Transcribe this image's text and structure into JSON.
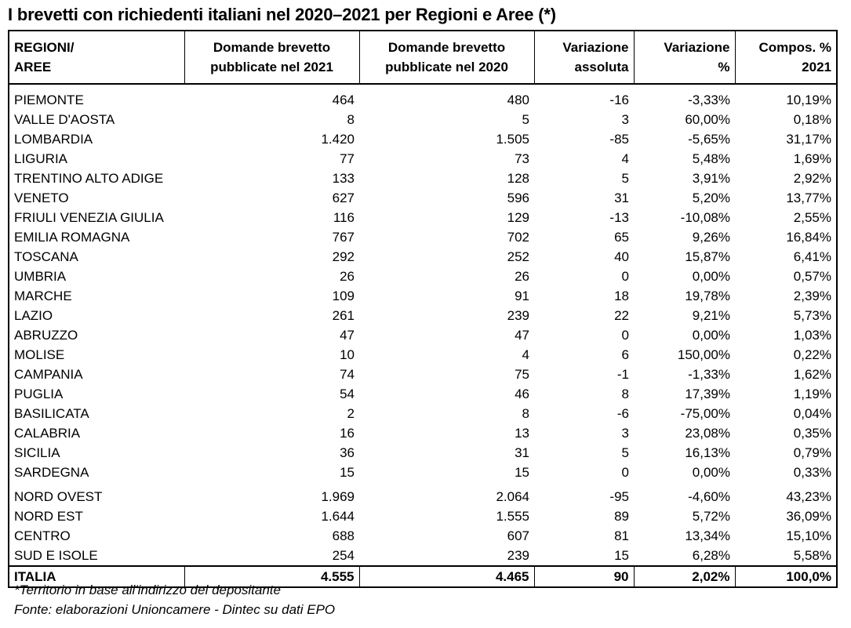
{
  "title": "I brevetti con richiedenti italiani nel 2020–2021 per Regioni e Aree (*)",
  "headers": {
    "col0": [
      "REGIONI/",
      "AREE"
    ],
    "col1": [
      "Domande brevetto",
      "pubblicate nel 2021"
    ],
    "col2": [
      "Domande brevetto",
      "pubblicate nel 2020"
    ],
    "col3": [
      "Variazione",
      "assoluta"
    ],
    "col4": [
      "Variazione",
      "%"
    ],
    "col5": [
      "Compos. %",
      "2021"
    ]
  },
  "regions": [
    [
      "PIEMONTE",
      "464",
      "480",
      "-16",
      "-3,33%",
      "10,19%"
    ],
    [
      "VALLE D'AOSTA",
      "8",
      "5",
      "3",
      "60,00%",
      "0,18%"
    ],
    [
      "LOMBARDIA",
      "1.420",
      "1.505",
      "-85",
      "-5,65%",
      "31,17%"
    ],
    [
      "LIGURIA",
      "77",
      "73",
      "4",
      "5,48%",
      "1,69%"
    ],
    [
      "TRENTINO ALTO ADIGE",
      "133",
      "128",
      "5",
      "3,91%",
      "2,92%"
    ],
    [
      "VENETO",
      "627",
      "596",
      "31",
      "5,20%",
      "13,77%"
    ],
    [
      "FRIULI VENEZIA GIULIA",
      "116",
      "129",
      "-13",
      "-10,08%",
      "2,55%"
    ],
    [
      "EMILIA ROMAGNA",
      "767",
      "702",
      "65",
      "9,26%",
      "16,84%"
    ],
    [
      "TOSCANA",
      "292",
      "252",
      "40",
      "15,87%",
      "6,41%"
    ],
    [
      "UMBRIA",
      "26",
      "26",
      "0",
      "0,00%",
      "0,57%"
    ],
    [
      "MARCHE",
      "109",
      "91",
      "18",
      "19,78%",
      "2,39%"
    ],
    [
      "LAZIO",
      "261",
      "239",
      "22",
      "9,21%",
      "5,73%"
    ],
    [
      "ABRUZZO",
      "47",
      "47",
      "0",
      "0,00%",
      "1,03%"
    ],
    [
      "MOLISE",
      "10",
      "4",
      "6",
      "150,00%",
      "0,22%"
    ],
    [
      "CAMPANIA",
      "74",
      "75",
      "-1",
      "-1,33%",
      "1,62%"
    ],
    [
      "PUGLIA",
      "54",
      "46",
      "8",
      "17,39%",
      "1,19%"
    ],
    [
      "BASILICATA",
      "2",
      "8",
      "-6",
      "-75,00%",
      "0,04%"
    ],
    [
      "CALABRIA",
      "16",
      "13",
      "3",
      "23,08%",
      "0,35%"
    ],
    [
      "SICILIA",
      "36",
      "31",
      "5",
      "16,13%",
      "0,79%"
    ],
    [
      "SARDEGNA",
      "15",
      "15",
      "0",
      "0,00%",
      "0,33%"
    ]
  ],
  "areas": [
    [
      "NORD OVEST",
      "1.969",
      "2.064",
      "-95",
      "-4,60%",
      "43,23%"
    ],
    [
      "NORD EST",
      "1.644",
      "1.555",
      "89",
      "5,72%",
      "36,09%"
    ],
    [
      "CENTRO",
      "688",
      "607",
      "81",
      "13,34%",
      "15,10%"
    ],
    [
      "SUD E ISOLE",
      "254",
      "239",
      "15",
      "6,28%",
      "5,58%"
    ]
  ],
  "total": [
    "ITALIA",
    "4.555",
    "4.465",
    "90",
    "2,02%",
    "100,0%"
  ],
  "notes": {
    "territory": "*Territorio in base all'indirizzo del depositante",
    "source": "Fonte: elaborazioni Unioncamere - Dintec su dati EPO"
  }
}
